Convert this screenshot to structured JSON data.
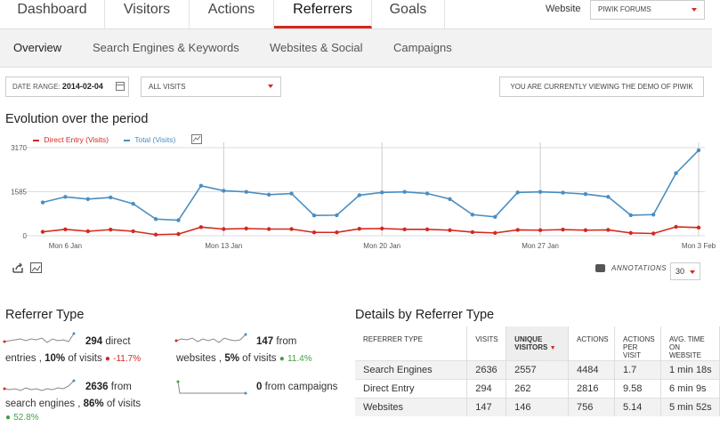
{
  "topnav": {
    "tabs": [
      {
        "label": "Dashboard"
      },
      {
        "label": "Visitors"
      },
      {
        "label": "Actions"
      },
      {
        "label": "Referrers",
        "active": true
      },
      {
        "label": "Goals"
      }
    ],
    "website_label": "Website",
    "website_value": "PIWIK FORUMS"
  },
  "subnav": {
    "items": [
      {
        "label": "Overview",
        "active": true
      },
      {
        "label": "Search Engines & Keywords"
      },
      {
        "label": "Websites & Social"
      },
      {
        "label": "Campaigns"
      }
    ]
  },
  "filters": {
    "date_label": "DATE RANGE:",
    "date_value": "2014-02-04",
    "segment": "ALL VISITS",
    "demo_notice": "YOU ARE CURRENTLY VIEWING THE DEMO OF PIWIK"
  },
  "evolution": {
    "title": "Evolution over the period",
    "annotations_label": "ANNOTATIONS",
    "limit": "30"
  },
  "chart_data": {
    "type": "line",
    "y_ticks": [
      "3170",
      "1585",
      "0"
    ],
    "x_ticks": [
      "Mon 6 Jan",
      "Mon 13 Jan",
      "Mon 20 Jan",
      "Mon 27 Jan",
      "Mon 3 Feb"
    ],
    "ylim": [
      0,
      3170
    ],
    "x_start": "2014-01-05",
    "series": [
      {
        "name": "Direct Entry (Visits)",
        "color": "#d4291f",
        "values": [
          140,
          230,
          160,
          220,
          160,
          40,
          60,
          310,
          240,
          260,
          240,
          240,
          120,
          120,
          250,
          260,
          230,
          230,
          200,
          130,
          100,
          210,
          200,
          220,
          200,
          210,
          100,
          80,
          320,
          294
        ]
      },
      {
        "name": "Total (Visits)",
        "color": "#4a8ec2",
        "values": [
          1200,
          1400,
          1320,
          1380,
          1150,
          600,
          560,
          1800,
          1620,
          1580,
          1480,
          1520,
          730,
          740,
          1460,
          1560,
          1580,
          1520,
          1320,
          760,
          680,
          1560,
          1580,
          1550,
          1500,
          1400,
          740,
          760,
          2250,
          3077
        ]
      }
    ],
    "grid": true,
    "legend_position": "top-left"
  },
  "referrer_type": {
    "title": "Referrer Type",
    "items": [
      {
        "count": "294",
        "label_a": "direct",
        "label_b": "entries ,",
        "pct": "10%",
        "pct_label": "of visits",
        "change": "-11.7%",
        "trend": "neg"
      },
      {
        "count": "147",
        "label_a": "from",
        "label_b": "websites ,",
        "pct": "5%",
        "pct_label": "of visits",
        "change": "11.4%",
        "trend": "pos"
      },
      {
        "count": "2636",
        "label_a": "from",
        "label_b": "search engines ,",
        "pct": "86%",
        "pct_label": "of visits",
        "change": "52.8%",
        "trend": "pos"
      },
      {
        "count": "0",
        "label_a": "from campaigns",
        "label_b": "",
        "pct": "",
        "pct_label": "",
        "change": "",
        "trend": ""
      }
    ]
  },
  "details": {
    "title": "Details by Referrer Type",
    "columns": [
      "REFERRER TYPE",
      "VISITS",
      "UNIQUE VISITORS",
      "ACTIONS",
      "ACTIONS PER VISIT",
      "AVG. TIME ON WEBSITE"
    ],
    "rows": [
      [
        "Search Engines",
        "2636",
        "2557",
        "4484",
        "1.7",
        "1 min 18s"
      ],
      [
        "Direct Entry",
        "294",
        "262",
        "2816",
        "9.58",
        "6 min 9s"
      ],
      [
        "Websites",
        "147",
        "146",
        "756",
        "5.14",
        "5 min 52s"
      ]
    ]
  }
}
